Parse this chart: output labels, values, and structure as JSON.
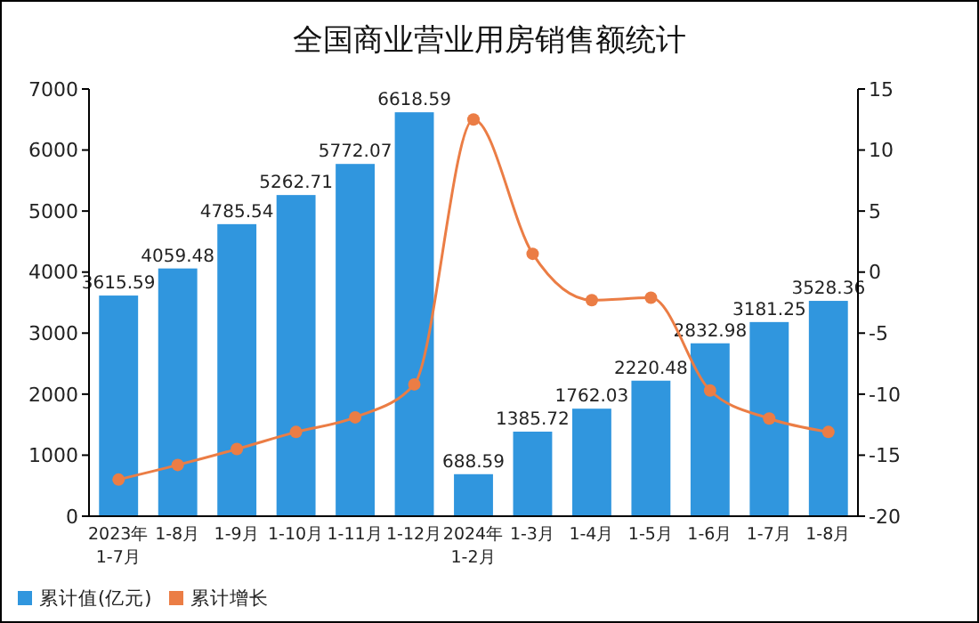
{
  "chart_data": {
    "type": "bar",
    "title": "全国商业营业用房销售额统计",
    "categories": [
      "2023年\n1-7月",
      "1-8月",
      "1-9月",
      "1-10月",
      "1-11月",
      "1-12月",
      "2024年\n1-2月",
      "1-3月",
      "1-4月",
      "1-5月",
      "1-6月",
      "1-7月",
      "1-8月"
    ],
    "series": [
      {
        "name": "累计值(亿元)",
        "color": "#3096de",
        "values": [
          3615.59,
          4059.48,
          4785.54,
          5262.71,
          5772.07,
          6618.59,
          688.59,
          1385.72,
          1762.03,
          2220.48,
          2832.98,
          3181.25,
          3528.36
        ],
        "value_labels": [
          "3615.59",
          "4059.48",
          "4785.54",
          "5262.71",
          "5772.07",
          "6618.59",
          "688.59",
          "1385.72",
          "1762.03",
          "2220.48",
          "2832.98",
          "3181.25",
          "3528.36"
        ]
      },
      {
        "name": "累计增长",
        "type": "line",
        "axis": "y2",
        "color": "#eb7d45",
        "marker": "circle",
        "values": [
          -17.0,
          -15.8,
          -14.5,
          -13.1,
          -11.9,
          -9.2,
          12.5,
          1.5,
          -2.3,
          -2.1,
          -9.7,
          -12.0,
          -13.1
        ]
      }
    ],
    "ylim": [
      0,
      7000
    ],
    "yticks": [
      0,
      1000,
      2000,
      3000,
      4000,
      5000,
      6000,
      7000
    ],
    "y2lim": [
      -20,
      15
    ],
    "y2ticks": [
      -20,
      -15,
      -10,
      -5,
      0,
      5,
      10,
      15
    ],
    "legend": "bottom left"
  }
}
